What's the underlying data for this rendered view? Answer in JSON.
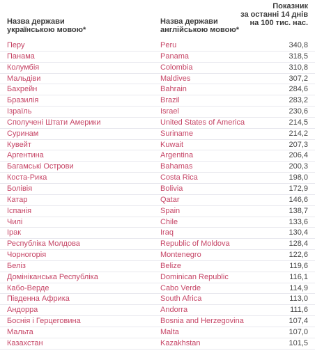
{
  "header": {
    "col1_line1": "Назва держави",
    "col1_line2": "українською мовою*",
    "col2_line1": "Назва держави",
    "col2_line2": "англійською мовою*",
    "col3_line1": "Показник",
    "col3_line2": "за останні 14 днів",
    "col3_line3": "на 100 тис. нас."
  },
  "rows": [
    {
      "ua": "Перу",
      "en": "Peru",
      "value": "340,8"
    },
    {
      "ua": "Панама",
      "en": "Panama",
      "value": "318,5"
    },
    {
      "ua": "Колумбія",
      "en": "Colombia",
      "value": "310,8"
    },
    {
      "ua": "Мальдіви",
      "en": "Maldives",
      "value": "307,2"
    },
    {
      "ua": "Бахрейн",
      "en": "Bahrain",
      "value": "284,6"
    },
    {
      "ua": "Бразилія",
      "en": "Brazil",
      "value": "283,2"
    },
    {
      "ua": "Ізраїль",
      "en": "Israel",
      "value": "230,6"
    },
    {
      "ua": "Сполучені Штати Америки",
      "en": "United States of America",
      "value": "214,5"
    },
    {
      "ua": "Суринам",
      "en": "Suriname",
      "value": "214,2"
    },
    {
      "ua": "Кувейт",
      "en": "Kuwait",
      "value": "207,3"
    },
    {
      "ua": "Аргентина",
      "en": "Argentina",
      "value": "206,4"
    },
    {
      "ua": "Багамські Острови",
      "en": "Bahamas",
      "value": "200,3"
    },
    {
      "ua": "Коста-Рика",
      "en": "Costa Rica",
      "value": "198,0"
    },
    {
      "ua": "Болівія",
      "en": "Bolivia",
      "value": "172,9"
    },
    {
      "ua": "Катар",
      "en": "Qatar",
      "value": "146,6"
    },
    {
      "ua": "Іспанія",
      "en": "Spain",
      "value": "138,7"
    },
    {
      "ua": "Чилі",
      "en": "Chile",
      "value": "133,6"
    },
    {
      "ua": "Ірак",
      "en": "Iraq",
      "value": "130,4"
    },
    {
      "ua": "Республіка Молдова",
      "en": "Republic of Moldova",
      "value": "128,4"
    },
    {
      "ua": "Чорногорія",
      "en": "Montenegro",
      "value": "122,6"
    },
    {
      "ua": "Беліз",
      "en": "Belize",
      "value": "119,6"
    },
    {
      "ua": "Домініканська Республіка",
      "en": "Dominican Republic",
      "value": "116,1"
    },
    {
      "ua": "Кабо-Верде",
      "en": "Cabo Verde",
      "value": "114,9"
    },
    {
      "ua": "Південна Африка",
      "en": "South Africa",
      "value": "113,0"
    },
    {
      "ua": "Андорра",
      "en": "Andorra",
      "value": "111,6"
    },
    {
      "ua": "Боснія і Герцеговина",
      "en": "Bosnia and Herzegovina",
      "value": "107,4"
    },
    {
      "ua": "Мальта",
      "en": "Malta",
      "value": "107,0"
    },
    {
      "ua": "Казахстан",
      "en": "Kazakhstan",
      "value": "101,5"
    }
  ],
  "colors": {
    "country_text": "#c64566",
    "value_text": "#444444",
    "header_text": "#3a3a3a"
  }
}
